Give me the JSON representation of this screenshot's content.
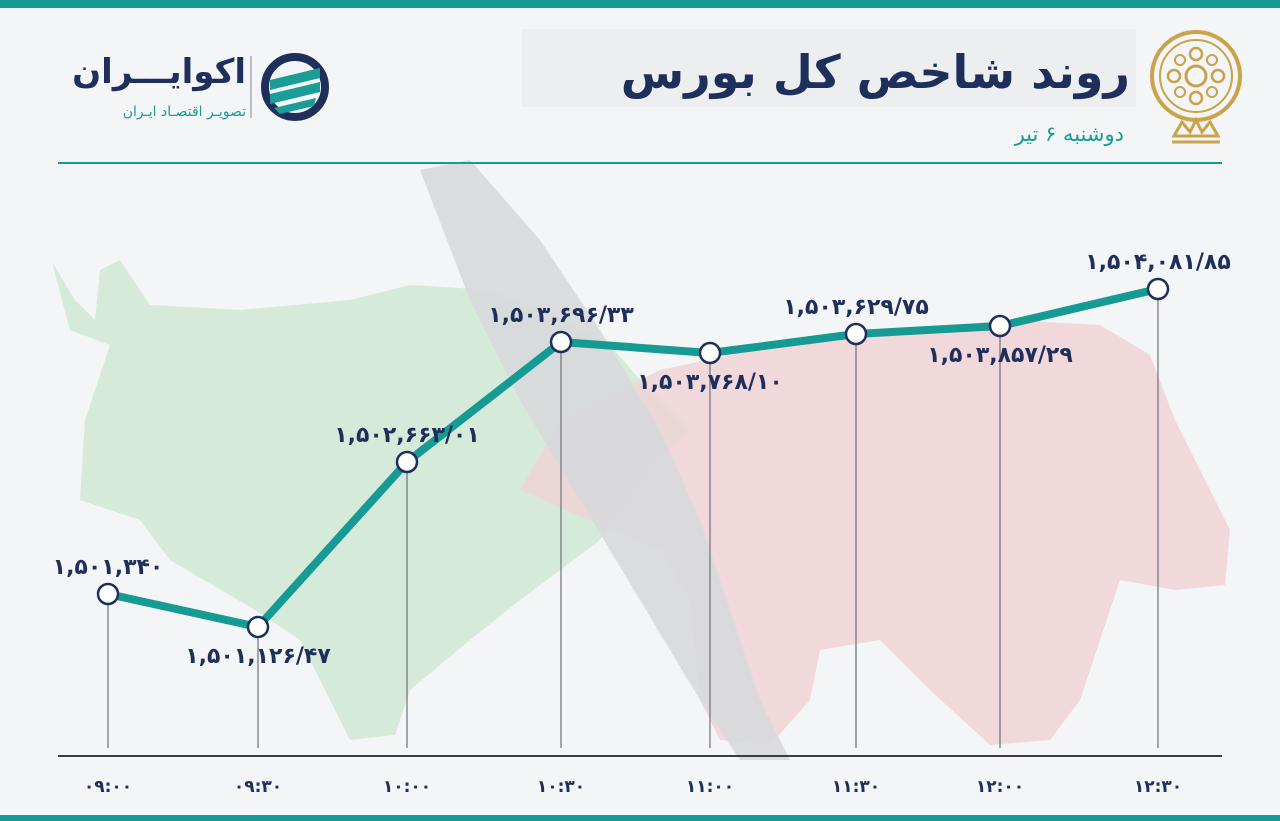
{
  "colors": {
    "frame": "#159a94",
    "navy": "#1f2f5c",
    "teal_line": "#159a94",
    "bull_green": "#cfe8d4",
    "bear_red": "#f0d4d6",
    "arrow_gray": "#d7d9dc",
    "gold": "#c9a24a"
  },
  "header": {
    "title": "روند شاخص کل بورس",
    "subtitle": "دوشنبه ۶ تیر"
  },
  "brand": {
    "name": "اکوایـــران",
    "tagline": "تصویـر اقتصـاد ایـران",
    "logo_icon": "ecoiran-logo-icon"
  },
  "emblem_icon": "tehran-stock-exchange-emblem-icon",
  "chart_data": {
    "type": "line",
    "categories": [
      "۰۹:۰۰",
      "۰۹:۳۰",
      "۱۰:۰۰",
      "۱۰:۳۰",
      "۱۱:۰۰",
      "۱۱:۳۰",
      "۱۲:۰۰",
      "۱۲:۳۰"
    ],
    "values": [
      1501340,
      1501126.47,
      1502663.01,
      1503696.33,
      1503768.1,
      1503629.75,
      1503857.29,
      1504081.85
    ],
    "data_labels": [
      "۱,۵۰۱,۳۴۰",
      "۱,۵۰۱,۱۲۶/۴۷",
      "۱,۵۰۲,۶۶۳/۰۱",
      "۱,۵۰۳,۶۹۶/۳۳",
      "۱,۵۰۳,۷۶۸/۱۰",
      "۱,۵۰۳,۶۲۹/۷۵",
      "۱,۵۰۳,۸۵۷/۲۹",
      "۱,۵۰۴,۰۸۱/۸۵"
    ],
    "label_positions": [
      "above",
      "below",
      "above",
      "above",
      "below",
      "above",
      "below",
      "above"
    ],
    "title": "روند شاخص کل بورس",
    "xlabel": "",
    "ylabel": "",
    "grid": false,
    "legend": "none"
  }
}
